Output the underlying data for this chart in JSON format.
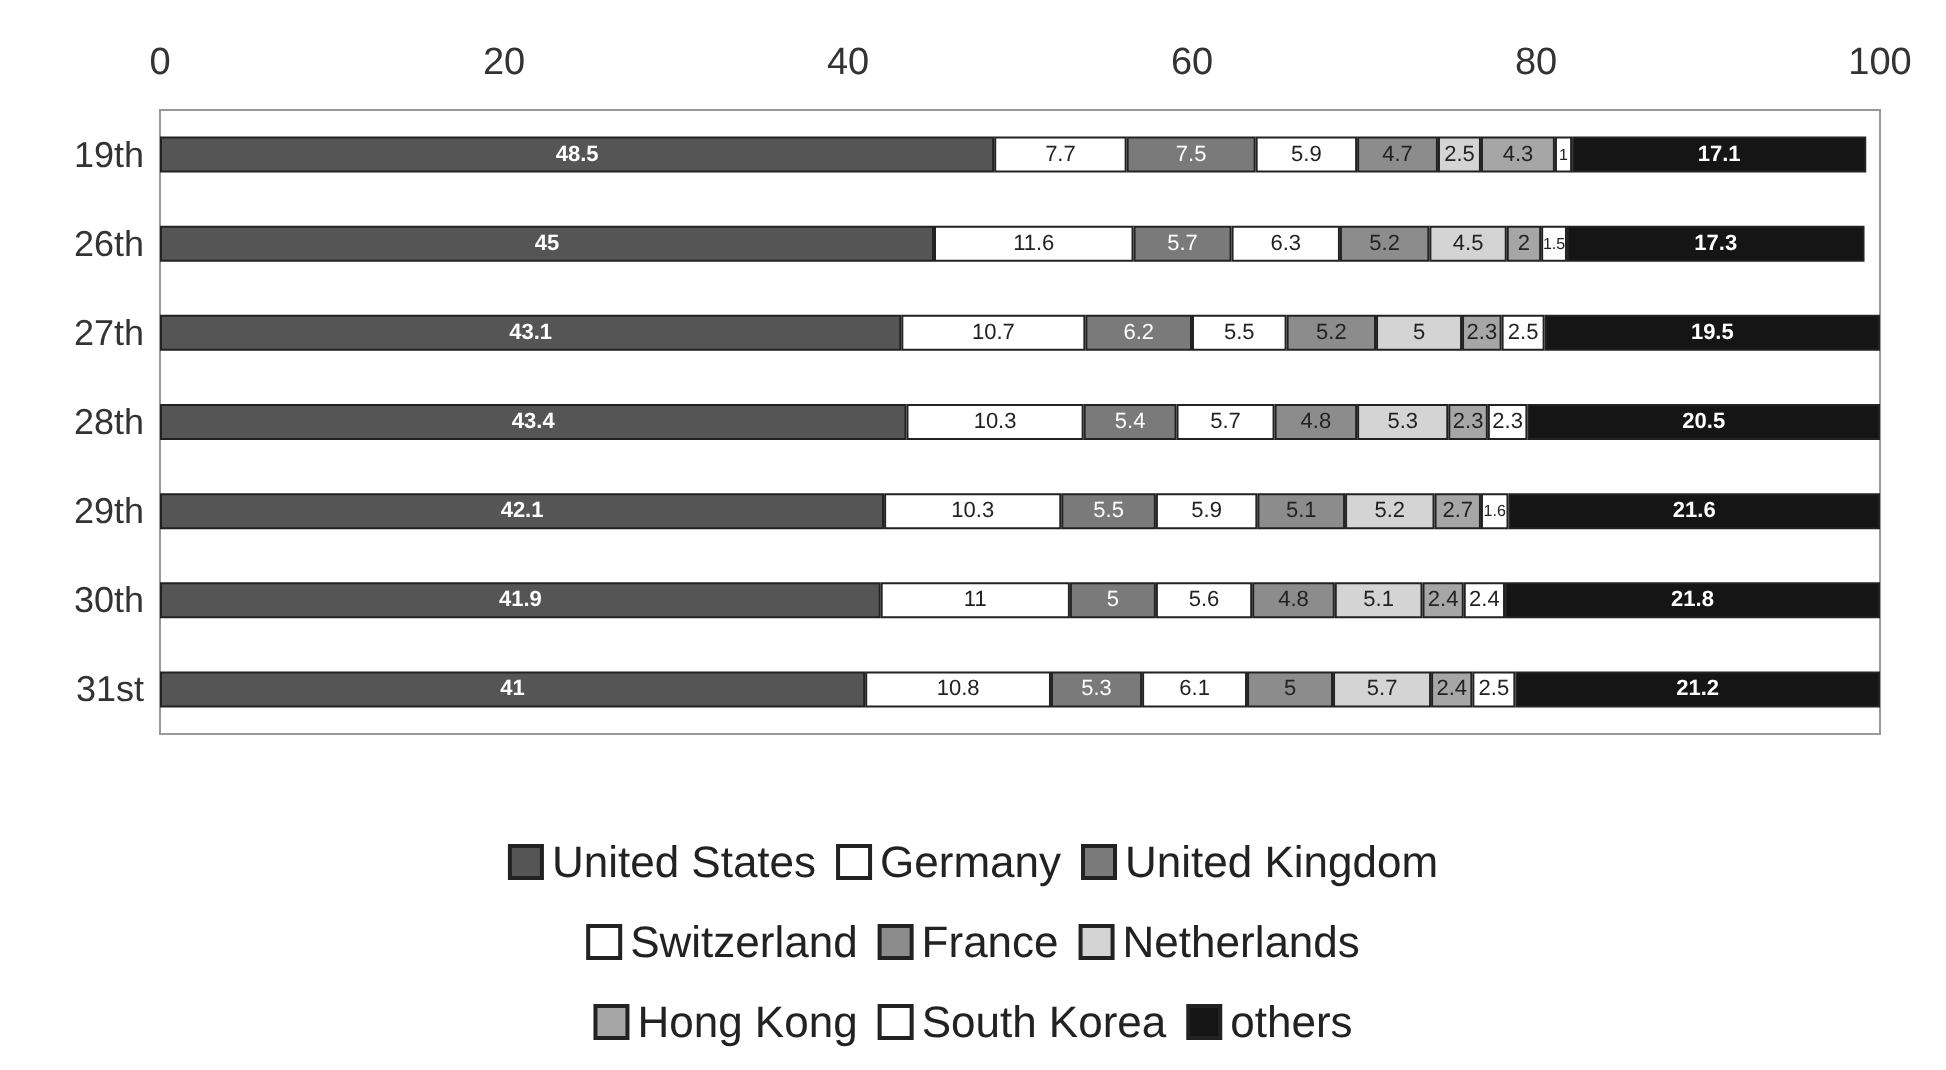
{
  "chart_data": {
    "type": "bar",
    "orientation": "horizontal",
    "stacked": true,
    "categories": [
      "19th",
      "26th",
      "27th",
      "28th",
      "29th",
      "30th",
      "31st"
    ],
    "series": [
      {
        "name": "United States",
        "color": "#555555",
        "values": [
          48.5,
          45,
          43.1,
          43.4,
          42.1,
          41.9,
          41
        ]
      },
      {
        "name": "Germany",
        "color": "#ffffff",
        "values": [
          7.7,
          11.6,
          10.7,
          10.3,
          10.3,
          11,
          10.8
        ]
      },
      {
        "name": "United Kingdom",
        "color": "#7a7a7a",
        "values": [
          7.5,
          5.7,
          6.2,
          5.4,
          5.5,
          5,
          5.3
        ]
      },
      {
        "name": "Switzerland",
        "color": "#ffffff",
        "values": [
          5.9,
          6.3,
          5.5,
          5.7,
          5.9,
          5.6,
          6.1
        ]
      },
      {
        "name": "France",
        "color": "#8c8c8c",
        "values": [
          4.7,
          5.2,
          5.2,
          4.8,
          5.1,
          4.8,
          5
        ]
      },
      {
        "name": "Netherlands",
        "color": "#d4d4d4",
        "values": [
          2.5,
          4.5,
          5,
          5.3,
          5.2,
          5.1,
          5.7
        ]
      },
      {
        "name": "Hong Kong",
        "color": "#a6a6a6",
        "values": [
          4.3,
          2,
          2.3,
          2.3,
          2.7,
          2.4,
          2.4
        ]
      },
      {
        "name": "South Korea",
        "color": "#ffffff",
        "values": [
          1,
          1.5,
          2.5,
          2.3,
          1.6,
          2.4,
          2.5
        ]
      },
      {
        "name": "others",
        "color": "#151515",
        "values": [
          17.1,
          17.3,
          19.5,
          20.5,
          21.6,
          21.8,
          21.2
        ]
      }
    ],
    "xlim": [
      0,
      100
    ],
    "xticks": [
      0,
      20,
      40,
      60,
      80,
      100
    ],
    "grid": false,
    "legend": "bottom",
    "data_labels": true
  }
}
